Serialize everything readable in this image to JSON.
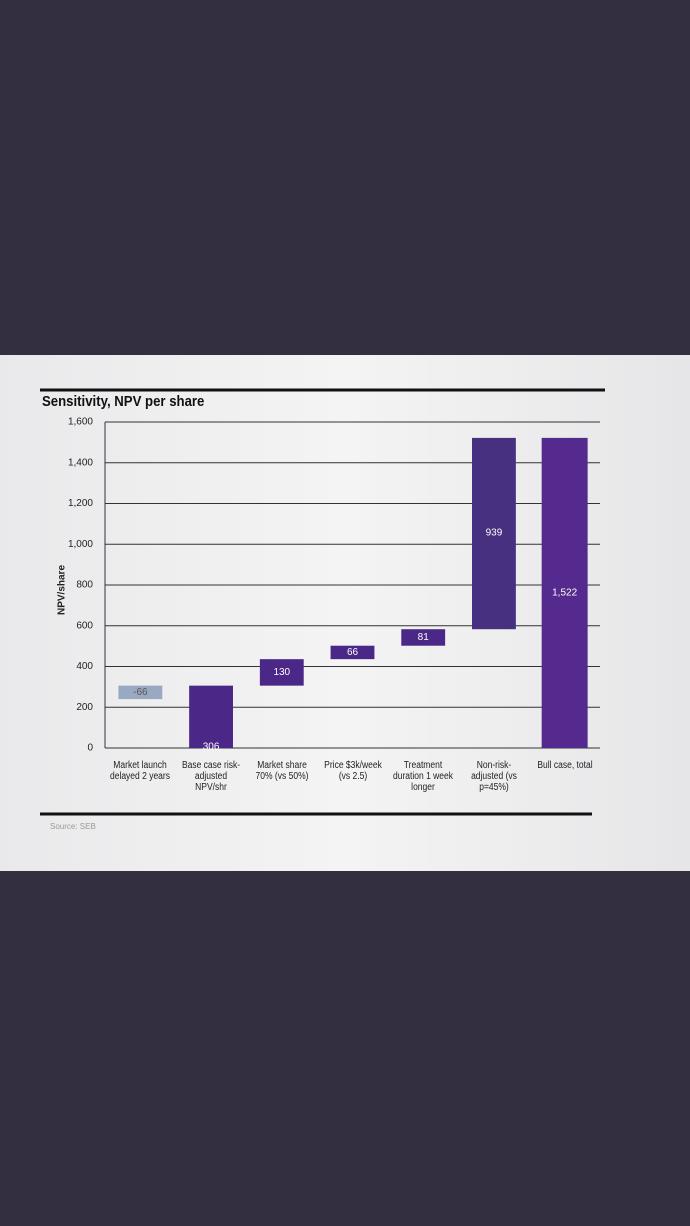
{
  "chart_data": {
    "type": "waterfall",
    "title": "Sensitivity, NPV per share",
    "y_label": "NPV/share",
    "source": "Source: SEB",
    "categories": [
      "Market launch\ndelayed 2 years",
      "Base case risk-\nadjusted\nNPV/shr",
      "Market share\n70% (vs 50%)",
      "Price $3k/week\n(vs 2.5)",
      "Treatment\nduration 1 week\nlonger",
      "Non-risk-\nadjusted (vs\np=45%)",
      "Bull case, total"
    ],
    "values": [
      -66,
      306,
      130,
      66,
      81,
      939,
      1522
    ],
    "value_labels": [
      "-66",
      "306",
      "130",
      "66",
      "81",
      "939",
      "1,522"
    ],
    "colors": [
      "#9aa9c2",
      "#4b2788",
      "#4b2788",
      "#4b2788",
      "#4b2788",
      "#46307f",
      "#552a8e"
    ],
    "ylim": [
      0,
      1600
    ],
    "yticks": [
      0,
      200,
      400,
      600,
      800,
      {
        "value": 1000,
        "label": "1,000"
      },
      {
        "value": 1200,
        "label": "1,200"
      },
      {
        "value": 1400,
        "label": "1,400"
      },
      {
        "value": 1600,
        "label": "1,600"
      }
    ],
    "grid": true
  }
}
